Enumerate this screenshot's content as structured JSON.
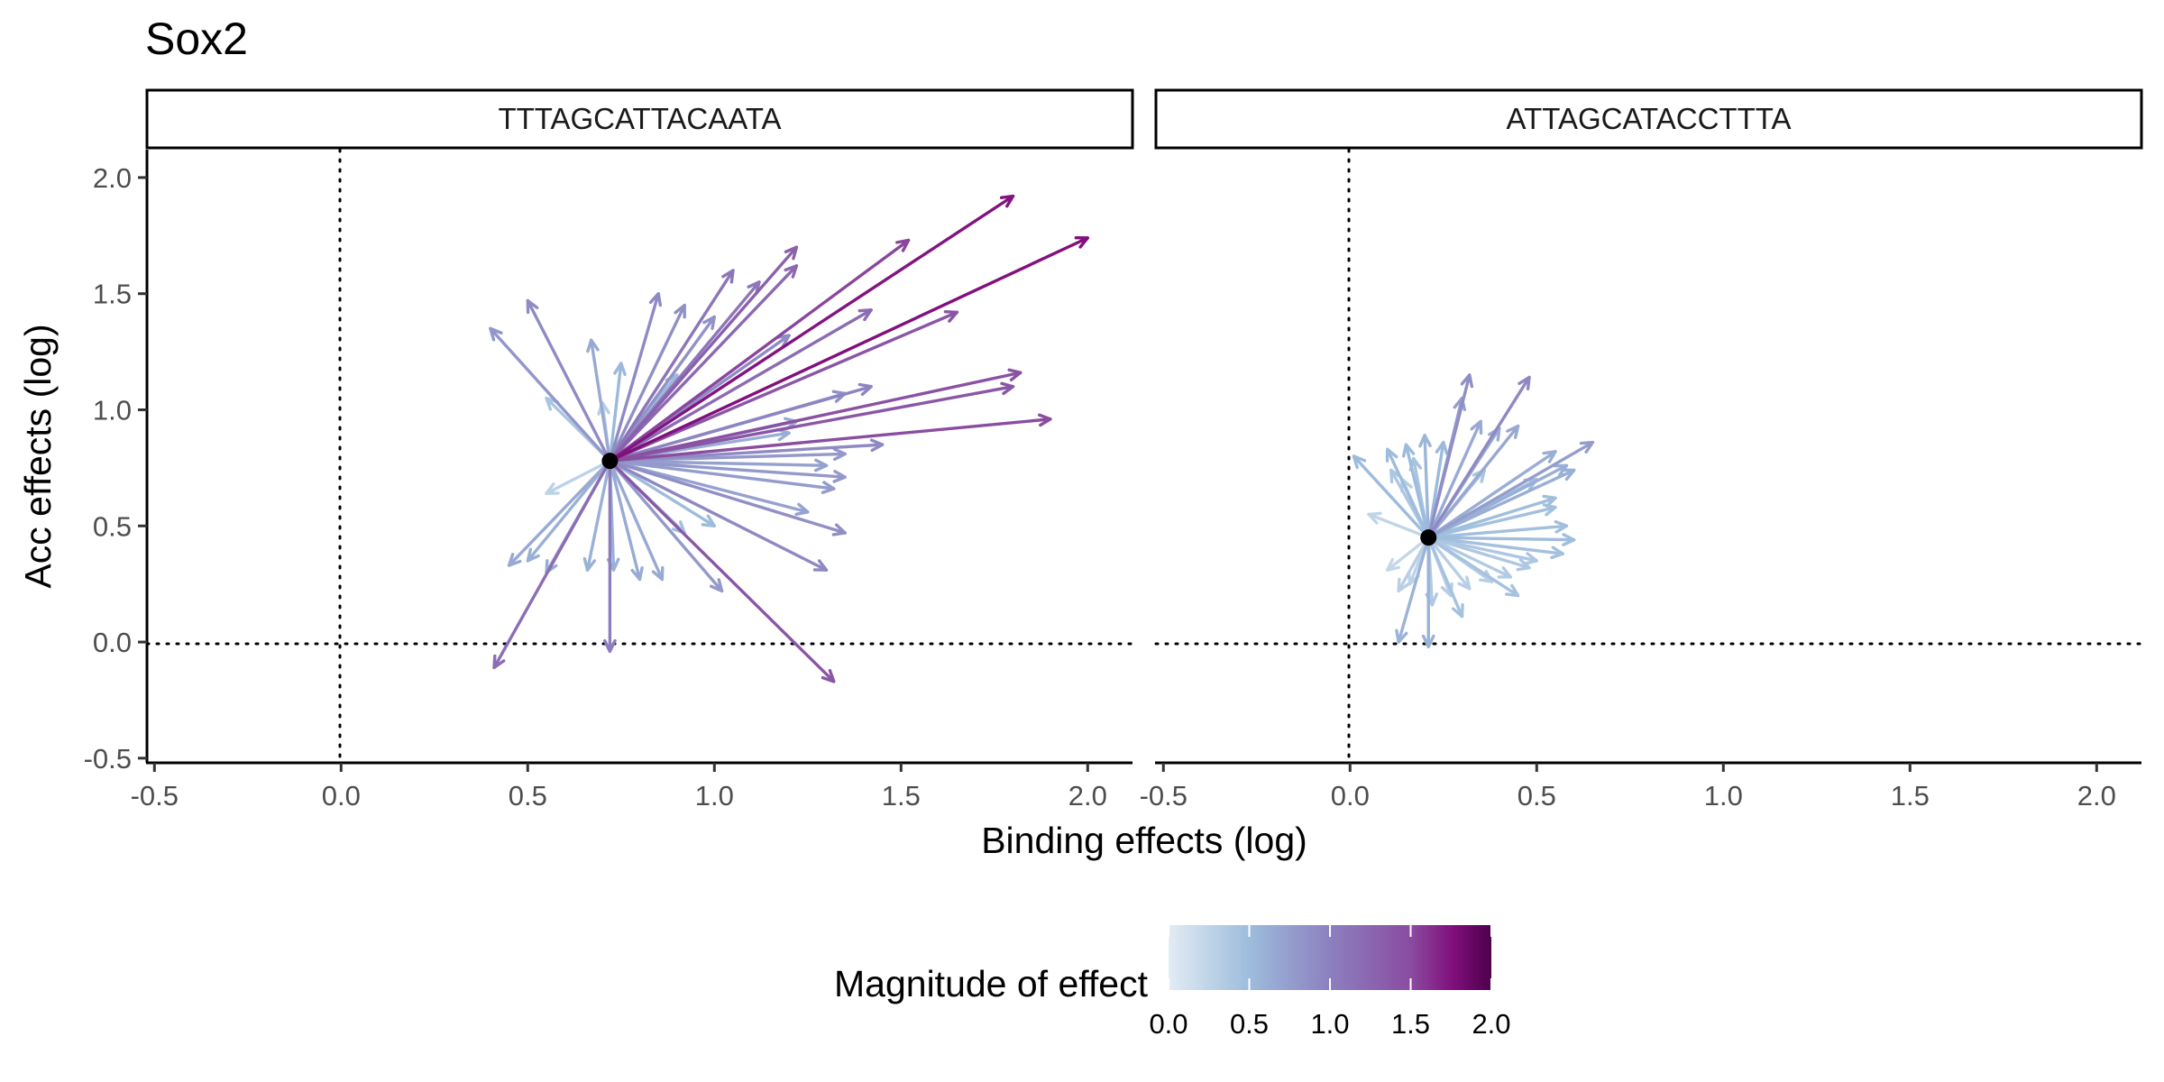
{
  "chart_data": {
    "type": "arrow-scatter",
    "title": "Sox2",
    "xlabel": "Binding effects (log)",
    "ylabel": "Acc effects (log)",
    "xlim": [
      -0.52,
      2.12
    ],
    "ylim": [
      -0.52,
      2.12
    ],
    "x_ticks": [
      "-0.5",
      "0.0",
      "0.5",
      "1.0",
      "1.5",
      "2.0"
    ],
    "y_ticks": [
      "-0.5",
      "0.0",
      "0.5",
      "1.0",
      "1.5",
      "2.0"
    ],
    "reference_lines": {
      "x": 0,
      "y": 0,
      "style": "dotted"
    },
    "legend": {
      "title": "Magnitude of effect",
      "type": "colorbar",
      "range": [
        0,
        2
      ],
      "ticks": [
        "0.0",
        "0.5",
        "1.0",
        "1.5",
        "2.0"
      ],
      "colors": [
        "#e2ecf4",
        "#9dbcdc",
        "#8c80bf",
        "#8a4ca0",
        "#810f7c",
        "#4d004b"
      ]
    },
    "panels": [
      {
        "label": "TTTAGCATTACAATA",
        "origin": [
          0.72,
          0.78
        ],
        "arrow_ends": [
          [
            1.8,
            1.92
          ],
          [
            2.0,
            1.74
          ],
          [
            1.22,
            1.7
          ],
          [
            1.52,
            1.73
          ],
          [
            1.22,
            1.62
          ],
          [
            1.05,
            1.6
          ],
          [
            1.12,
            1.55
          ],
          [
            0.85,
            1.5
          ],
          [
            0.5,
            1.47
          ],
          [
            1.42,
            1.43
          ],
          [
            1.65,
            1.42
          ],
          [
            0.4,
            1.35
          ],
          [
            0.92,
            1.45
          ],
          [
            1.0,
            1.4
          ],
          [
            0.67,
            1.3
          ],
          [
            1.2,
            1.32
          ],
          [
            0.75,
            1.2
          ],
          [
            0.9,
            1.15
          ],
          [
            1.82,
            1.16
          ],
          [
            1.8,
            1.1
          ],
          [
            1.42,
            1.1
          ],
          [
            1.35,
            1.07
          ],
          [
            0.55,
            1.05
          ],
          [
            0.7,
            1.03
          ],
          [
            1.9,
            0.96
          ],
          [
            1.22,
            0.95
          ],
          [
            1.2,
            0.9
          ],
          [
            1.45,
            0.85
          ],
          [
            1.35,
            0.81
          ],
          [
            1.3,
            0.76
          ],
          [
            1.35,
            0.71
          ],
          [
            1.32,
            0.66
          ],
          [
            0.55,
            0.64
          ],
          [
            1.25,
            0.56
          ],
          [
            1.35,
            0.47
          ],
          [
            1.0,
            0.5
          ],
          [
            0.92,
            0.47
          ],
          [
            0.45,
            0.33
          ],
          [
            0.5,
            0.35
          ],
          [
            0.55,
            0.3
          ],
          [
            0.66,
            0.31
          ],
          [
            0.73,
            0.31
          ],
          [
            0.8,
            0.27
          ],
          [
            0.86,
            0.27
          ],
          [
            1.3,
            0.31
          ],
          [
            1.02,
            0.22
          ],
          [
            0.72,
            -0.04
          ],
          [
            0.41,
            -0.11
          ],
          [
            1.32,
            -0.17
          ]
        ]
      },
      {
        "label": "ATTAGCATACCTTTA",
        "origin": [
          0.21,
          0.45
        ],
        "arrow_ends": [
          [
            0.32,
            1.15
          ],
          [
            0.48,
            1.14
          ],
          [
            0.3,
            1.05
          ],
          [
            0.35,
            0.95
          ],
          [
            0.4,
            0.92
          ],
          [
            0.45,
            0.93
          ],
          [
            0.65,
            0.86
          ],
          [
            0.55,
            0.82
          ],
          [
            0.01,
            0.8
          ],
          [
            0.58,
            0.76
          ],
          [
            0.2,
            0.89
          ],
          [
            0.25,
            0.86
          ],
          [
            0.15,
            0.85
          ],
          [
            0.1,
            0.83
          ],
          [
            0.17,
            0.79
          ],
          [
            0.11,
            0.74
          ],
          [
            0.5,
            0.7
          ],
          [
            0.6,
            0.74
          ],
          [
            0.55,
            0.62
          ],
          [
            0.58,
            0.5
          ],
          [
            0.6,
            0.44
          ],
          [
            0.57,
            0.38
          ],
          [
            0.5,
            0.35
          ],
          [
            0.48,
            0.32
          ],
          [
            0.43,
            0.28
          ],
          [
            0.38,
            0.26
          ],
          [
            0.32,
            0.23
          ],
          [
            0.27,
            0.2
          ],
          [
            0.22,
            0.16
          ],
          [
            0.16,
            0.25
          ],
          [
            0.13,
            0.22
          ],
          [
            0.1,
            0.31
          ],
          [
            0.13,
            0.0
          ],
          [
            0.21,
            -0.02
          ],
          [
            0.3,
            0.11
          ],
          [
            0.45,
            0.2
          ],
          [
            0.55,
            0.58
          ],
          [
            0.05,
            0.55
          ],
          [
            0.14,
            0.7
          ],
          [
            0.36,
            0.74
          ]
        ]
      }
    ]
  }
}
